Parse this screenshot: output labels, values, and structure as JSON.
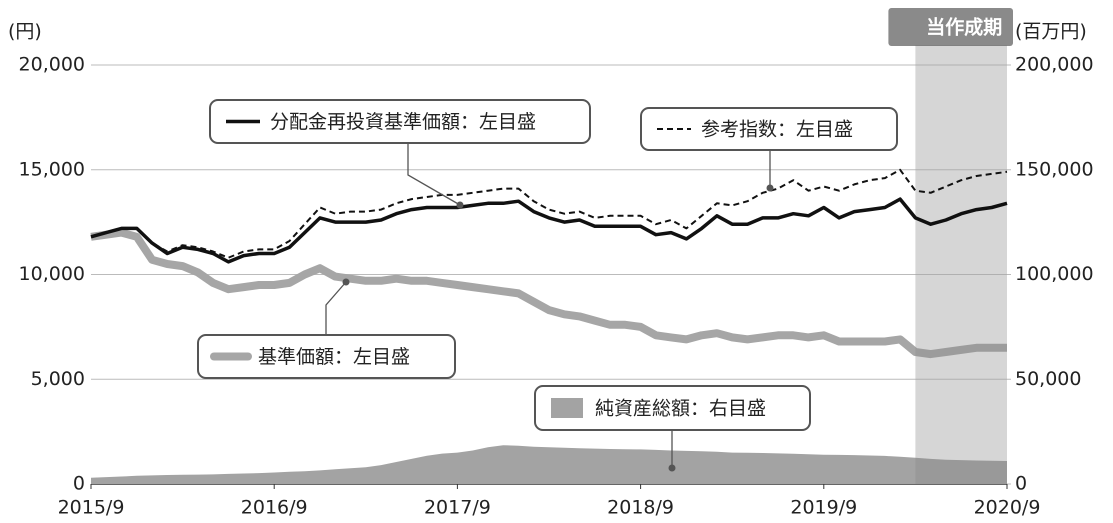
{
  "chart_data": {
    "type": "line",
    "y_unit_label": "(円)",
    "y2_unit_label": "(百万円)",
    "highlight": {
      "label": "当作成期",
      "from": "2020/3",
      "to": "2020/9",
      "color": "#e4e4e4",
      "label_color": "#8a8a8a"
    },
    "x": [
      "2015/9",
      "2015/10",
      "2015/11",
      "2015/12",
      "2016/1",
      "2016/2",
      "2016/3",
      "2016/4",
      "2016/5",
      "2016/6",
      "2016/7",
      "2016/8",
      "2016/9",
      "2016/10",
      "2016/11",
      "2016/12",
      "2017/1",
      "2017/2",
      "2017/3",
      "2017/4",
      "2017/5",
      "2017/6",
      "2017/7",
      "2017/8",
      "2017/9",
      "2017/10",
      "2017/11",
      "2017/12",
      "2018/1",
      "2018/2",
      "2018/3",
      "2018/4",
      "2018/5",
      "2018/6",
      "2018/7",
      "2018/8",
      "2018/9",
      "2018/10",
      "2018/11",
      "2018/12",
      "2019/1",
      "2019/2",
      "2019/3",
      "2019/4",
      "2019/5",
      "2019/6",
      "2019/7",
      "2019/8",
      "2019/9",
      "2019/10",
      "2019/11",
      "2019/12",
      "2020/1",
      "2020/2",
      "2020/3",
      "2020/4",
      "2020/5",
      "2020/6",
      "2020/7",
      "2020/8",
      "2020/9"
    ],
    "xticks": [
      "2015/9",
      "2016/9",
      "2017/9",
      "2018/9",
      "2019/9",
      "2020/9"
    ],
    "ylim": [
      0,
      20000
    ],
    "yticks": [
      0,
      {
        "value": 5000,
        "label": "5,000"
      },
      {
        "value": 10000,
        "label": "10,000"
      },
      {
        "value": 15000,
        "label": "15,000"
      },
      {
        "value": 20000,
        "label": "20,000"
      }
    ],
    "y2lim": [
      0,
      200000
    ],
    "y2ticks": [
      0,
      {
        "value": 50000,
        "label": "50,000"
      },
      {
        "value": 100000,
        "label": "100,000"
      },
      {
        "value": 150000,
        "label": "150,000"
      },
      {
        "value": 200000,
        "label": "200,000"
      }
    ],
    "grid": true,
    "series": [
      {
        "name": "純資産総額：右目盛",
        "style": "area",
        "axis": "y2",
        "color": "#a3a3a3",
        "values": [
          3000,
          3300,
          3600,
          3900,
          4100,
          4300,
          4400,
          4500,
          4600,
          4800,
          5000,
          5200,
          5500,
          5800,
          6100,
          6500,
          7000,
          7500,
          8000,
          9000,
          10500,
          12000,
          13500,
          14500,
          15000,
          16000,
          17500,
          18500,
          18300,
          17800,
          17500,
          17300,
          17100,
          16900,
          16700,
          16600,
          16500,
          16300,
          16000,
          15800,
          15600,
          15400,
          15000,
          14900,
          14800,
          14600,
          14400,
          14200,
          14000,
          13900,
          13800,
          13600,
          13400,
          13000,
          12500,
          12000,
          11600,
          11400,
          11200,
          11100,
          11000
        ]
      },
      {
        "name": "基準価額：左目盛",
        "style": "thick",
        "color": "#a6a6a6",
        "values": [
          11800,
          11900,
          12000,
          11800,
          10700,
          10500,
          10400,
          10100,
          9600,
          9300,
          9400,
          9500,
          9500,
          9600,
          10000,
          10300,
          9900,
          9800,
          9700,
          9700,
          9800,
          9700,
          9700,
          9600,
          9500,
          9400,
          9300,
          9200,
          9100,
          8700,
          8300,
          8100,
          8000,
          7800,
          7600,
          7600,
          7500,
          7100,
          7000,
          6900,
          7100,
          7200,
          7000,
          6900,
          7000,
          7100,
          7100,
          7000,
          7100,
          6800,
          6800,
          6800,
          6800,
          6900,
          6300,
          6200,
          6300,
          6400,
          6500,
          6500,
          6500
        ]
      },
      {
        "name": "分配金再投資基準価額：左目盛",
        "style": "solid",
        "color": "#111111",
        "values": [
          11800,
          12000,
          12200,
          12200,
          11500,
          11000,
          11300,
          11200,
          11000,
          10600,
          10900,
          11000,
          11000,
          11300,
          12000,
          12700,
          12500,
          12500,
          12500,
          12600,
          12900,
          13100,
          13200,
          13200,
          13200,
          13300,
          13400,
          13400,
          13500,
          13000,
          12700,
          12500,
          12600,
          12300,
          12300,
          12300,
          12300,
          11900,
          12000,
          11700,
          12200,
          12800,
          12400,
          12400,
          12700,
          12700,
          12900,
          12800,
          13200,
          12700,
          13000,
          13100,
          13200,
          13600,
          12700,
          12400,
          12600,
          12900,
          13100,
          13200,
          13400
        ]
      },
      {
        "name": "参考指数：左目盛",
        "style": "dashed",
        "color": "#111111",
        "values": [
          11800,
          12000,
          12200,
          12200,
          11500,
          11100,
          11400,
          11300,
          11100,
          10800,
          11100,
          11200,
          11200,
          11600,
          12400,
          13200,
          12900,
          13000,
          13000,
          13100,
          13400,
          13600,
          13700,
          13800,
          13800,
          13900,
          14000,
          14100,
          14100,
          13500,
          13100,
          12900,
          13000,
          12700,
          12800,
          12800,
          12800,
          12400,
          12600,
          12200,
          12800,
          13400,
          13300,
          13500,
          13900,
          14100,
          14500,
          14000,
          14200,
          14000,
          14300,
          14500,
          14600,
          15000,
          14000,
          13900,
          14200,
          14500,
          14700,
          14800,
          14900
        ]
      }
    ]
  }
}
